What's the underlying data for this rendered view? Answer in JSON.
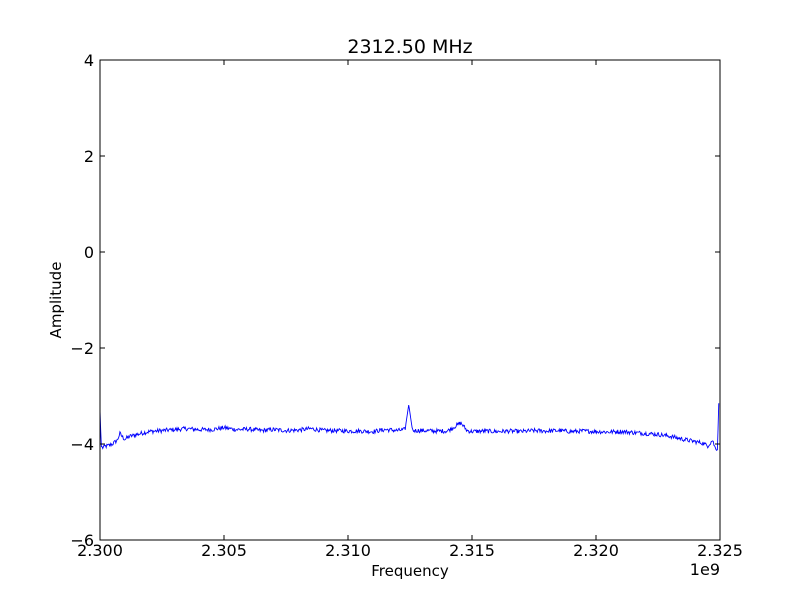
{
  "chart_data": {
    "type": "line",
    "title": "2312.50 MHz",
    "xlabel": "Frequency",
    "ylabel": "Amplitude",
    "x_offset_label": "1e9",
    "xlim": [
      2.3,
      2.325
    ],
    "ylim": [
      -6,
      4
    ],
    "x_ticks": [
      2.3,
      2.305,
      2.31,
      2.315,
      2.32,
      2.325
    ],
    "x_tick_labels": [
      "2.300",
      "2.305",
      "2.310",
      "2.315",
      "2.320",
      "2.325"
    ],
    "y_ticks": [
      -6,
      -4,
      -2,
      0,
      2,
      4
    ],
    "y_tick_labels": [
      "−6",
      "−4",
      "−2",
      "0",
      "2",
      "4"
    ],
    "grid": false,
    "series": [
      {
        "color": "#0000ff",
        "points": [
          [
            2.3,
            -3.3
          ],
          [
            2.30005,
            -4.05
          ],
          [
            2.3001,
            -4.08
          ],
          [
            2.3002,
            -4.05
          ],
          [
            2.3003,
            -4.04
          ],
          [
            2.3005,
            -4.0
          ],
          [
            2.3007,
            -3.92
          ],
          [
            2.3008,
            -3.78
          ],
          [
            2.3009,
            -3.85
          ],
          [
            2.301,
            -3.9
          ],
          [
            2.3012,
            -3.84
          ],
          [
            2.3015,
            -3.8
          ],
          [
            2.3018,
            -3.76
          ],
          [
            2.302,
            -3.74
          ],
          [
            2.3025,
            -3.72
          ],
          [
            2.303,
            -3.7
          ],
          [
            2.3035,
            -3.68
          ],
          [
            2.304,
            -3.7
          ],
          [
            2.3045,
            -3.7
          ],
          [
            2.305,
            -3.66
          ],
          [
            2.3055,
            -3.7
          ],
          [
            2.306,
            -3.69
          ],
          [
            2.3065,
            -3.72
          ],
          [
            2.307,
            -3.7
          ],
          [
            2.3075,
            -3.72
          ],
          [
            2.308,
            -3.71
          ],
          [
            2.3085,
            -3.68
          ],
          [
            2.309,
            -3.72
          ],
          [
            2.3095,
            -3.72
          ],
          [
            2.31,
            -3.73
          ],
          [
            2.3105,
            -3.73
          ],
          [
            2.311,
            -3.74
          ],
          [
            2.3115,
            -3.7
          ],
          [
            2.312,
            -3.72
          ],
          [
            2.3123,
            -3.7
          ],
          [
            2.31245,
            -3.18
          ],
          [
            2.3126,
            -3.72
          ],
          [
            2.313,
            -3.72
          ],
          [
            2.3135,
            -3.73
          ],
          [
            2.314,
            -3.73
          ],
          [
            2.31455,
            -3.56
          ],
          [
            2.3148,
            -3.72
          ],
          [
            2.315,
            -3.74
          ],
          [
            2.3155,
            -3.73
          ],
          [
            2.316,
            -3.74
          ],
          [
            2.3165,
            -3.73
          ],
          [
            2.317,
            -3.74
          ],
          [
            2.3175,
            -3.72
          ],
          [
            2.318,
            -3.73
          ],
          [
            2.3185,
            -3.72
          ],
          [
            2.319,
            -3.74
          ],
          [
            2.3195,
            -3.73
          ],
          [
            2.32,
            -3.74
          ],
          [
            2.3205,
            -3.75
          ],
          [
            2.321,
            -3.74
          ],
          [
            2.3215,
            -3.76
          ],
          [
            2.322,
            -3.78
          ],
          [
            2.3225,
            -3.8
          ],
          [
            2.323,
            -3.84
          ],
          [
            2.3235,
            -3.9
          ],
          [
            2.324,
            -3.95
          ],
          [
            2.3243,
            -3.98
          ],
          [
            2.3245,
            -4.04
          ],
          [
            2.3247,
            -3.92
          ],
          [
            2.3248,
            -4.08
          ],
          [
            2.3249,
            -4.1
          ],
          [
            2.32495,
            -3.15
          ]
        ]
      }
    ]
  }
}
